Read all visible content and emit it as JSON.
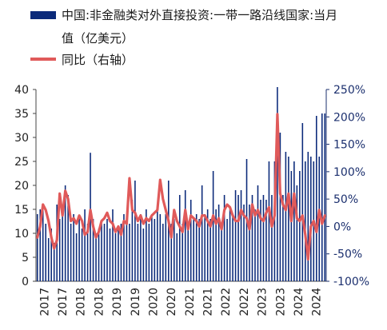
{
  "legend": {
    "bar_label_line1": "中国:非金融类对外直接投资:一带一路沿线国家:当月",
    "bar_label_line2": "值（亿美元）",
    "line_label": "同比（右轴）"
  },
  "colors": {
    "bar": "#0b2a7a",
    "line": "#e05a5a",
    "axis": "#1b2f6e"
  },
  "chart_data": {
    "type": "bar",
    "title": "",
    "legend_position": "top-left",
    "grid": false,
    "y_left": {
      "range": [
        0,
        40
      ],
      "ticks": [
        "0",
        "5",
        "10",
        "15",
        "20",
        "25",
        "30",
        "35",
        "40"
      ]
    },
    "y_right": {
      "range": [
        -100,
        250
      ],
      "ticks": [
        "-100%",
        "-50%",
        "0%",
        "50%",
        "100%",
        "150%",
        "200%",
        "250%"
      ]
    },
    "x_tick_labels": [
      "2017",
      "2017",
      "2018",
      "2018",
      "2019",
      "2019",
      "2020",
      "2020",
      "2021",
      "2021",
      "2022",
      "2022",
      "2023",
      "2023",
      "2024",
      "2024"
    ],
    "x_start": "2017-01",
    "series": [
      {
        "name": "中国:非金融类对外直接投资:一带一路沿线国家:当月值（亿美元）",
        "axis": "left",
        "kind": "bar",
        "values": [
          14,
          15,
          16,
          12,
          9,
          11,
          8,
          16,
          13,
          14,
          20,
          18,
          12,
          14,
          10,
          13,
          11,
          15,
          12,
          26.8,
          13,
          10,
          11,
          12,
          12,
          13,
          11,
          15,
          10,
          11,
          12,
          14,
          13,
          12,
          17,
          21,
          12,
          14,
          11,
          15,
          12,
          14,
          13,
          16,
          14,
          12,
          14,
          21,
          12,
          13,
          10,
          18,
          12,
          19,
          12,
          17,
          13,
          14,
          13,
          20,
          14,
          15,
          13,
          23,
          15,
          16,
          12,
          18,
          13,
          15,
          14,
          19,
          18,
          19,
          16,
          25.5,
          16,
          18,
          15,
          20,
          17,
          18,
          17,
          25,
          18,
          25,
          40.5,
          31,
          18,
          27,
          26,
          23,
          25,
          20,
          23,
          33,
          25,
          27,
          26,
          25,
          34.5,
          26,
          35,
          35
        ]
      },
      {
        "name": "同比（右轴）",
        "axis": "right",
        "kind": "line",
        "values": [
          -20,
          0,
          40,
          30,
          10,
          -20,
          -40,
          -25,
          60,
          20,
          65,
          50,
          10,
          15,
          5,
          20,
          10,
          -15,
          -10,
          30,
          0,
          -20,
          -10,
          10,
          15,
          25,
          10,
          5,
          -10,
          0,
          -15,
          10,
          5,
          88,
          30,
          25,
          10,
          20,
          5,
          15,
          10,
          20,
          25,
          30,
          85,
          50,
          30,
          10,
          -20,
          30,
          10,
          0,
          -10,
          30,
          -5,
          20,
          15,
          10,
          0,
          20,
          20,
          10,
          0,
          20,
          5,
          15,
          -5,
          30,
          40,
          35,
          20,
          10,
          10,
          30,
          20,
          15,
          -5,
          40,
          20,
          30,
          15,
          10,
          25,
          35,
          0,
          20,
          205,
          60,
          40,
          30,
          60,
          10,
          60,
          15,
          10,
          20,
          -15,
          -60,
          0,
          10,
          -10,
          30,
          5,
          20
        ]
      }
    ]
  }
}
